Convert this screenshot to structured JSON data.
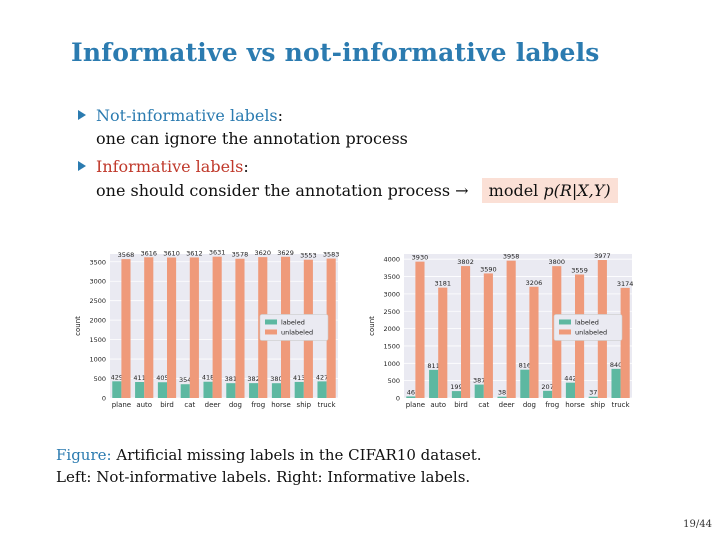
{
  "title": "Informative vs not-informative labels",
  "bullets": [
    {
      "term": "Not-informative labels",
      "colon": ":",
      "line2": "one can ignore the annotation process"
    },
    {
      "term": "Informative labels",
      "colon": ":",
      "line2": "one should consider the annotation process",
      "arrow": "→",
      "model_text": "model ",
      "model_math": "p(R|X,Y)"
    }
  ],
  "caption": {
    "label": "Figure:",
    "line1": "Artificial missing labels in the CIFAR10 dataset.",
    "line2": "Left: Not-informative labels. Right: Informative labels."
  },
  "page": "19/44",
  "colors": {
    "labeled": "#5db8a1",
    "unlabeled": "#ef9a7a",
    "plot_bg": "#eaeaf2",
    "title": "#2b7bb0",
    "term_red": "#c0392b"
  },
  "chart_data": [
    {
      "type": "bar",
      "categories": [
        "plane",
        "auto",
        "bird",
        "cat",
        "deer",
        "dog",
        "frog",
        "horse",
        "ship",
        "truck"
      ],
      "series": [
        {
          "name": "labeled",
          "values": [
            429,
            411,
            405,
            354,
            418,
            381,
            382,
            380,
            413,
            427
          ]
        },
        {
          "name": "unlabeled",
          "values": [
            3568,
            3616,
            3610,
            3612,
            3631,
            3578,
            3620,
            3629,
            3553,
            3583
          ]
        }
      ],
      "ylabel": "count",
      "ylim": [
        0,
        3700
      ],
      "yticks": [
        0,
        500,
        1000,
        1500,
        2000,
        2500,
        3000,
        3500
      ],
      "legend": [
        "labeled",
        "unlabeled"
      ],
      "legend_position": "right"
    },
    {
      "type": "bar",
      "categories": [
        "plane",
        "auto",
        "bird",
        "cat",
        "deer",
        "dog",
        "frog",
        "horse",
        "ship",
        "truck"
      ],
      "series": [
        {
          "name": "labeled",
          "values": [
            46,
            811,
            199,
            387,
            38,
            816,
            207,
            442,
            37,
            840
          ]
        },
        {
          "name": "unlabeled",
          "values": [
            3930,
            3181,
            3802,
            3590,
            3958,
            3206,
            3800,
            3559,
            3977,
            3174
          ]
        }
      ],
      "ylabel": "count",
      "ylim": [
        0,
        4150
      ],
      "yticks": [
        0,
        500,
        1000,
        1500,
        2000,
        2500,
        3000,
        3500,
        4000
      ],
      "legend": [
        "labeled",
        "unlabeled"
      ],
      "legend_position": "right"
    }
  ]
}
